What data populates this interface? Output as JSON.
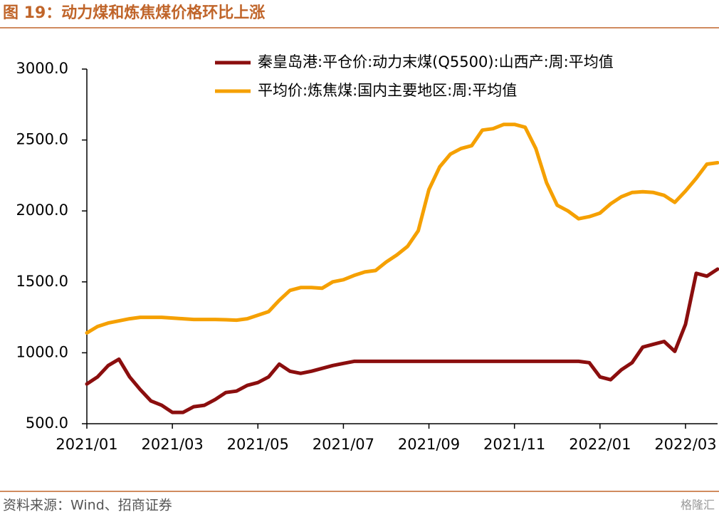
{
  "chart_data": {
    "type": "line",
    "title": "图 19：动力煤和炼焦煤价格环比上涨",
    "source": "资料来源：Wind、招商证券",
    "watermark": "格隆汇",
    "categories": [
      "2021/01",
      null,
      null,
      null,
      null,
      null,
      null,
      null,
      "2021/03",
      null,
      null,
      null,
      null,
      null,
      null,
      null,
      "2021/05",
      null,
      null,
      null,
      null,
      null,
      null,
      null,
      "2021/07",
      null,
      null,
      null,
      null,
      null,
      null,
      null,
      "2021/09",
      null,
      null,
      null,
      null,
      null,
      null,
      null,
      "2021/11",
      null,
      null,
      null,
      null,
      null,
      null,
      null,
      "2022/01",
      null,
      null,
      null,
      null,
      null,
      null,
      null,
      "2022/03",
      null,
      null,
      null
    ],
    "series": [
      {
        "name": "秦皇岛港:平仓价:动力末煤(Q5500):山西产:周:平均值",
        "color": "#8b0e0e",
        "values": [
          780,
          830,
          910,
          955,
          830,
          740,
          660,
          630,
          580,
          580,
          620,
          630,
          670,
          720,
          730,
          770,
          790,
          830,
          920,
          870,
          855,
          870,
          890,
          910,
          925,
          940,
          940,
          940,
          940,
          940,
          940,
          940,
          940,
          940,
          940,
          940,
          940,
          940,
          940,
          940,
          940,
          940,
          940,
          940,
          940,
          940,
          940,
          930,
          830,
          810,
          880,
          930,
          1040,
          1060,
          1080,
          1010,
          1200,
          1560,
          1540,
          1590
        ]
      },
      {
        "name": "平均价:炼焦煤:国内主要地区:周:平均值",
        "color": "#f5a000",
        "values": [
          1140,
          1185,
          1210,
          1225,
          1240,
          1250,
          1250,
          1250,
          1245,
          1240,
          1235,
          1235,
          1235,
          1233,
          1230,
          1240,
          1265,
          1290,
          1370,
          1440,
          1460,
          1460,
          1455,
          1500,
          1515,
          1545,
          1570,
          1580,
          1640,
          1690,
          1750,
          1860,
          2150,
          2310,
          2400,
          2440,
          2460,
          2570,
          2580,
          2610,
          2610,
          2590,
          2440,
          2200,
          2040,
          2000,
          1945,
          1960,
          1985,
          2050,
          2100,
          2130,
          2135,
          2130,
          2110,
          2060,
          2140,
          2230,
          2330,
          2340
        ]
      }
    ],
    "ylim": [
      500,
      3000
    ],
    "yticks": [
      {
        "value": 500,
        "label": "500.0"
      },
      {
        "value": 1000,
        "label": "1000.0"
      },
      {
        "value": 1500,
        "label": "1500.0"
      },
      {
        "value": 2000,
        "label": "2000.0"
      },
      {
        "value": 2500,
        "label": "2500.0"
      },
      {
        "value": 3000,
        "label": "3000.0"
      }
    ],
    "grid": false
  }
}
